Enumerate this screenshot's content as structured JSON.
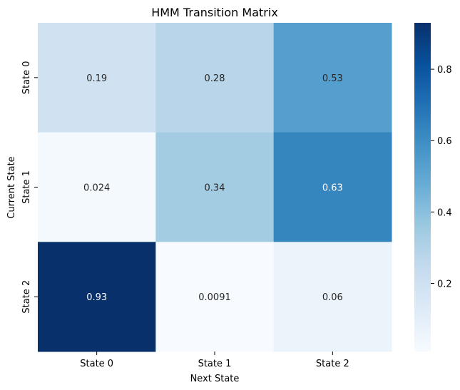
{
  "chart_data": {
    "type": "heatmap",
    "title": "HMM Transition Matrix",
    "xlabel": "Next State",
    "ylabel": "Current State",
    "x_categories": [
      "State 0",
      "State 1",
      "State 2"
    ],
    "y_categories": [
      "State 0",
      "State 1",
      "State 2"
    ],
    "values": [
      [
        0.19,
        0.28,
        0.53
      ],
      [
        0.024,
        0.34,
        0.63
      ],
      [
        0.93,
        0.0091,
        0.06
      ]
    ],
    "value_labels": [
      [
        "0.19",
        "0.28",
        "0.53"
      ],
      [
        "0.024",
        "0.34",
        "0.63"
      ],
      [
        "0.93",
        "0.0091",
        "0.06"
      ]
    ],
    "colormap": "Blues",
    "vmin": 0.0091,
    "vmax": 0.93,
    "colorbar_ticks": [
      0.2,
      0.4,
      0.6,
      0.8
    ],
    "colorbar_tick_labels": [
      "0.2",
      "0.4",
      "0.6",
      "0.8"
    ],
    "grid": false,
    "legend": "colorbar-right"
  }
}
